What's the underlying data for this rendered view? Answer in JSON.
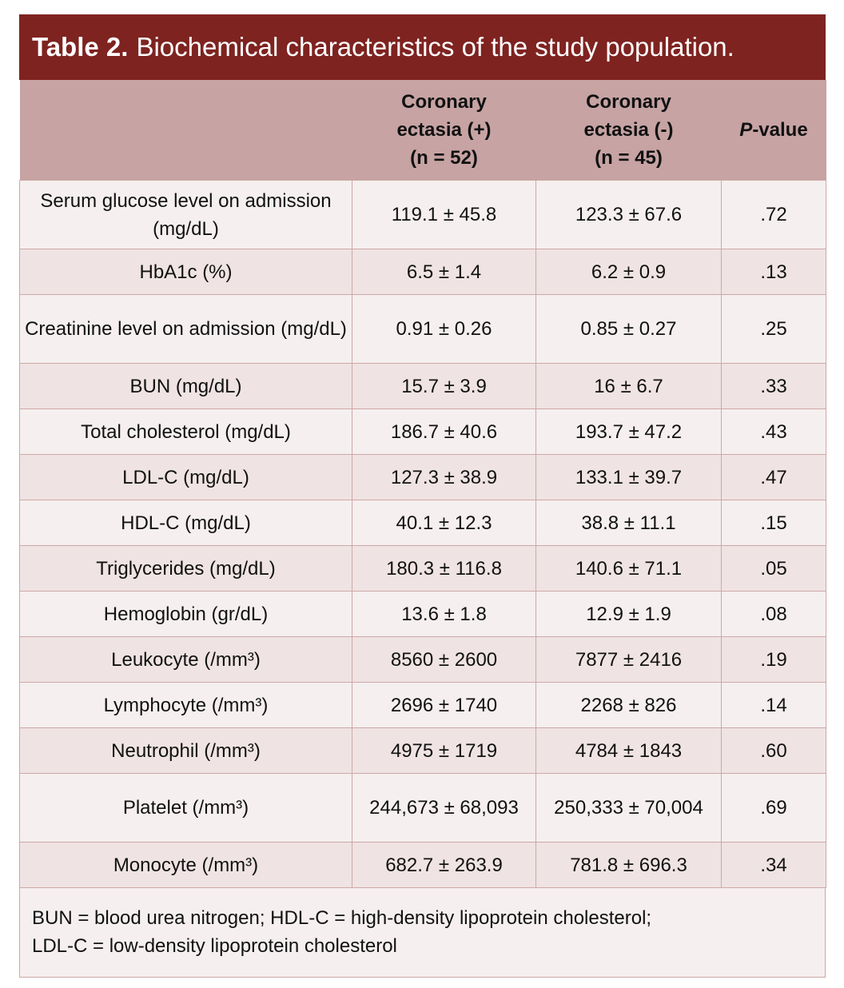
{
  "title": {
    "label": "Table 2.",
    "text": "Biochemical characteristics of the study population."
  },
  "headers": {
    "col1": [
      "Coronary",
      "ectasia (+)",
      "(n = 52)"
    ],
    "col2": [
      "Coronary",
      "ectasia (-)",
      "(n = 45)"
    ],
    "p_italic": "P",
    "p_rest": "-value"
  },
  "rows": [
    {
      "name": "Serum glucose level on admission (mg/dL)",
      "pos": "119.1 ± 45.8",
      "neg": "123.3 ± 67.6",
      "p": ".72",
      "tall": true
    },
    {
      "name": "HbA1c (%)",
      "pos": "6.5 ± 1.4",
      "neg": "6.2 ± 0.9",
      "p": ".13"
    },
    {
      "name": "Creatinine level on admission (mg/dL)",
      "pos": "0.91 ± 0.26",
      "neg": "0.85 ± 0.27",
      "p": ".25",
      "tall": true
    },
    {
      "name": "BUN (mg/dL)",
      "pos": "15.7 ± 3.9",
      "neg": "16 ± 6.7",
      "p": ".33"
    },
    {
      "name": "Total cholesterol (mg/dL)",
      "pos": "186.7 ± 40.6",
      "neg": "193.7 ± 47.2",
      "p": ".43"
    },
    {
      "name": "LDL-C (mg/dL)",
      "pos": "127.3 ± 38.9",
      "neg": "133.1 ± 39.7",
      "p": ".47"
    },
    {
      "name": "HDL-C (mg/dL)",
      "pos": "40.1 ± 12.3",
      "neg": "38.8 ± 11.1",
      "p": ".15"
    },
    {
      "name": "Triglycerides (mg/dL)",
      "pos": "180.3 ± 116.8",
      "neg": "140.6 ± 71.1",
      "p": ".05"
    },
    {
      "name": "Hemoglobin (gr/dL)",
      "pos": "13.6 ± 1.8",
      "neg": "12.9 ± 1.9",
      "p": ".08"
    },
    {
      "name": "Leukocyte (/mm³)",
      "pos": "8560 ± 2600",
      "neg": "7877 ± 2416",
      "p": ".19"
    },
    {
      "name": "Lymphocyte (/mm³)",
      "pos": "2696 ± 1740",
      "neg": "2268 ± 826",
      "p": ".14"
    },
    {
      "name": "Neutrophil (/mm³)",
      "pos": "4975 ± 1719",
      "neg": "4784 ± 1843",
      "p": ".60"
    },
    {
      "name": "Platelet (/mm³)",
      "pos": "244,673 ± 68,093",
      "neg": "250,333 ± 70,004",
      "p": ".69",
      "tall": true
    },
    {
      "name": "Monocyte (/mm³)",
      "pos": "682.7 ± 263.9",
      "neg": "781.8 ± 696.3",
      "p": ".34"
    }
  ],
  "footnote": [
    "BUN = blood urea nitrogen; HDL-C = high-density lipoprotein cholesterol;",
    "LDL-C = low-density lipoprotein cholesterol"
  ]
}
